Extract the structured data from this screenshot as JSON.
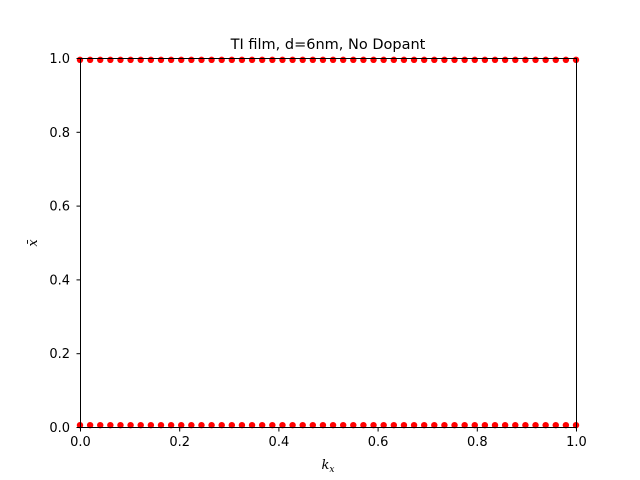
{
  "chart_data": {
    "type": "scatter",
    "title": "TI film, d=6nm, No Dopant",
    "xlabel": "k_x",
    "ylabel": "x̄",
    "xlim": [
      0.0,
      1.0
    ],
    "ylim": [
      0.0,
      1.0
    ],
    "xticks": [
      "0.0",
      "0.2",
      "0.4",
      "0.6",
      "0.8",
      "1.0"
    ],
    "yticks": [
      "0.0",
      "0.2",
      "0.4",
      "0.6",
      "0.8",
      "1.0"
    ],
    "grid": false,
    "marker_color": "#ff0000",
    "series": [
      {
        "x": [
          0.0,
          0.0204,
          0.0408,
          0.0612,
          0.0816,
          0.102,
          0.1224,
          0.1429,
          0.1633,
          0.1837,
          0.2041,
          0.2245,
          0.2449,
          0.2653,
          0.2857,
          0.3061,
          0.3265,
          0.3469,
          0.3673,
          0.3878,
          0.4082,
          0.4286,
          0.449,
          0.4694,
          0.4898,
          0.5102,
          0.5306,
          0.551,
          0.5714,
          0.5918,
          0.6122,
          0.6327,
          0.6531,
          0.6735,
          0.6939,
          0.7143,
          0.7347,
          0.7551,
          0.7755,
          0.7959,
          0.8163,
          0.8367,
          0.8571,
          0.8776,
          0.898,
          0.9184,
          0.9388,
          0.9592,
          0.9796,
          1.0
        ],
        "y": [
          0.995,
          0.995,
          0.995,
          0.995,
          0.995,
          0.995,
          0.995,
          0.995,
          0.995,
          0.995,
          0.995,
          0.995,
          0.995,
          0.995,
          0.995,
          0.995,
          0.995,
          0.995,
          0.995,
          0.995,
          0.995,
          0.995,
          0.995,
          0.995,
          0.995,
          0.995,
          0.995,
          0.995,
          0.995,
          0.995,
          0.995,
          0.995,
          0.995,
          0.995,
          0.995,
          0.995,
          0.995,
          0.995,
          0.995,
          0.995,
          0.995,
          0.995,
          0.995,
          0.995,
          0.995,
          0.995,
          0.995,
          0.995,
          0.995,
          0.995
        ]
      },
      {
        "x": [
          0.0,
          0.0204,
          0.0408,
          0.0612,
          0.0816,
          0.102,
          0.1224,
          0.1429,
          0.1633,
          0.1837,
          0.2041,
          0.2245,
          0.2449,
          0.2653,
          0.2857,
          0.3061,
          0.3265,
          0.3469,
          0.3673,
          0.3878,
          0.4082,
          0.4286,
          0.449,
          0.4694,
          0.4898,
          0.5102,
          0.5306,
          0.551,
          0.5714,
          0.5918,
          0.6122,
          0.6327,
          0.6531,
          0.6735,
          0.6939,
          0.7143,
          0.7347,
          0.7551,
          0.7755,
          0.7959,
          0.8163,
          0.8367,
          0.8571,
          0.8776,
          0.898,
          0.9184,
          0.9388,
          0.9592,
          0.9796,
          1.0
        ],
        "y": [
          0.005,
          0.005,
          0.005,
          0.005,
          0.005,
          0.005,
          0.005,
          0.005,
          0.005,
          0.005,
          0.005,
          0.005,
          0.005,
          0.005,
          0.005,
          0.005,
          0.005,
          0.005,
          0.005,
          0.005,
          0.005,
          0.005,
          0.005,
          0.005,
          0.005,
          0.005,
          0.005,
          0.005,
          0.005,
          0.005,
          0.005,
          0.005,
          0.005,
          0.005,
          0.005,
          0.005,
          0.005,
          0.005,
          0.005,
          0.005,
          0.005,
          0.005,
          0.005,
          0.005,
          0.005,
          0.005,
          0.005,
          0.005,
          0.005,
          0.005
        ]
      }
    ]
  }
}
